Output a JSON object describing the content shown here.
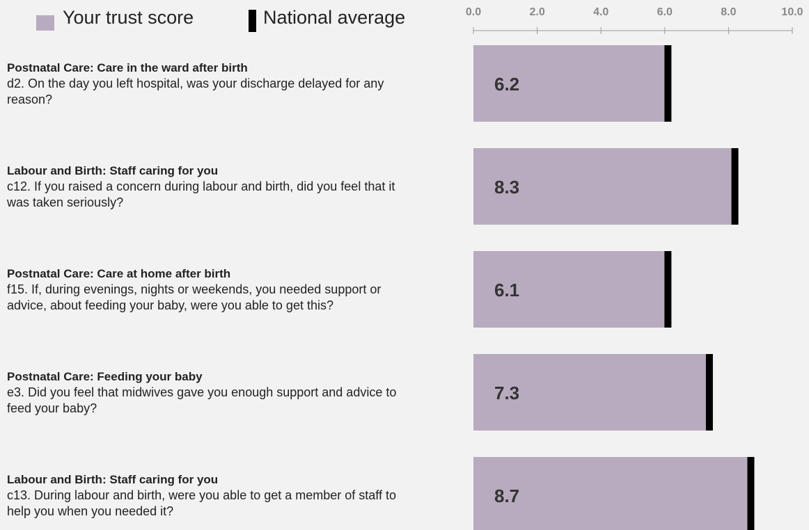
{
  "chart_data": {
    "type": "bar",
    "orientation": "horizontal",
    "sections": [
      "Postnatal Care: Care in the ward after birth",
      "Labour and Birth: Staff caring for you",
      "Postnatal Care: Care at home after birth",
      "Postnatal Care: Feeding your baby",
      "Labour and Birth: Staff caring for you"
    ],
    "categories": [
      "d2. On the day you left hospital, was your discharge delayed for any reason?",
      "c12. If you raised a concern during labour and birth, did you feel that it was taken seriously?",
      "f15. If, during evenings, nights or weekends, you needed support or advice, about feeding your baby, were you able to get this?",
      "e3. Did you feel that midwives gave you enough support and advice to feed your baby?",
      "c13. During labour and birth, were you able to get a member of staff to help you when you needed it?"
    ],
    "series": [
      {
        "name": "Your trust score",
        "color": "#b8abbf",
        "values": [
          6.2,
          8.3,
          6.1,
          7.3,
          8.7
        ]
      },
      {
        "name": "National average",
        "color": "#000000",
        "values": [
          6.1,
          8.2,
          6.1,
          7.4,
          8.7
        ]
      }
    ],
    "xlim": [
      0,
      10
    ],
    "xticks": [
      {
        "value": 0,
        "label": "0.0"
      },
      {
        "value": 2,
        "label": "2.0"
      },
      {
        "value": 4,
        "label": "4.0"
      },
      {
        "value": 6,
        "label": "6.0"
      },
      {
        "value": 8,
        "label": "8.0"
      },
      {
        "value": 10,
        "label": "10.0"
      }
    ]
  }
}
